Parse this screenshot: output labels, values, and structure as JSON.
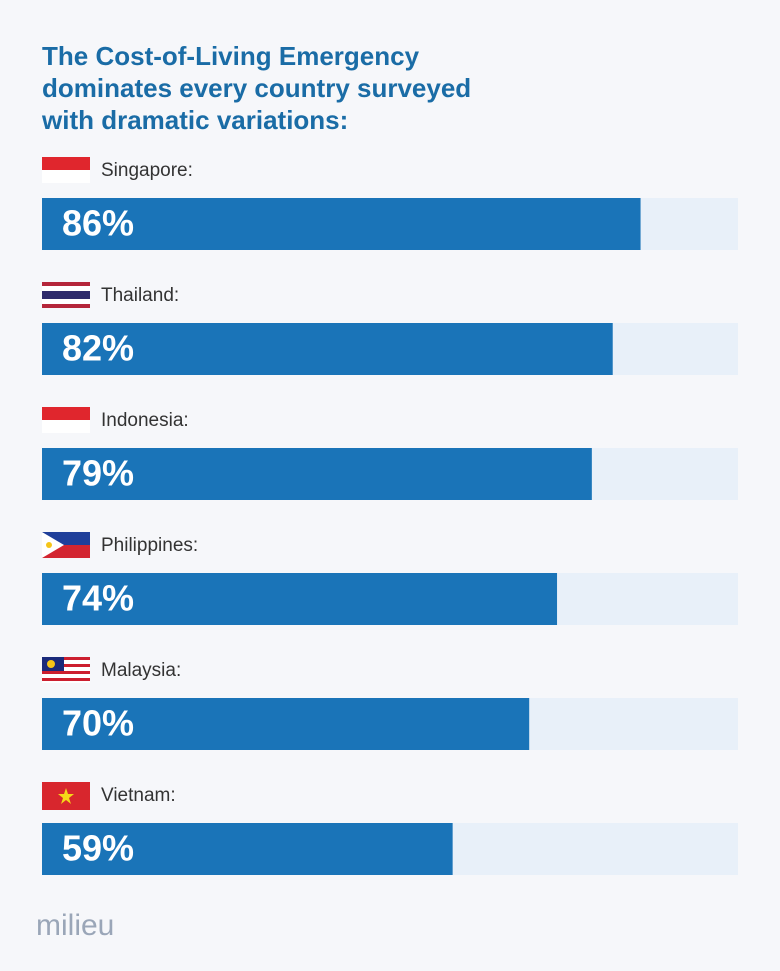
{
  "chart_data": {
    "type": "bar",
    "orientation": "horizontal",
    "title": "The Cost-of-Living Emergency dominates every country surveyed with dramatic variations:",
    "categories": [
      "Singapore:",
      "Thailand:",
      "Indonesia:",
      "Philippines:",
      "Malaysia:",
      "Vietnam:"
    ],
    "values": [
      86,
      82,
      79,
      74,
      70,
      59
    ],
    "value_labels": [
      "86%",
      "82%",
      "79%",
      "74%",
      "70%",
      "59%"
    ],
    "color": "#1a74b8",
    "track_color": "#e8f0f9",
    "xlim": [
      0,
      100
    ],
    "brand": "milieu"
  }
}
